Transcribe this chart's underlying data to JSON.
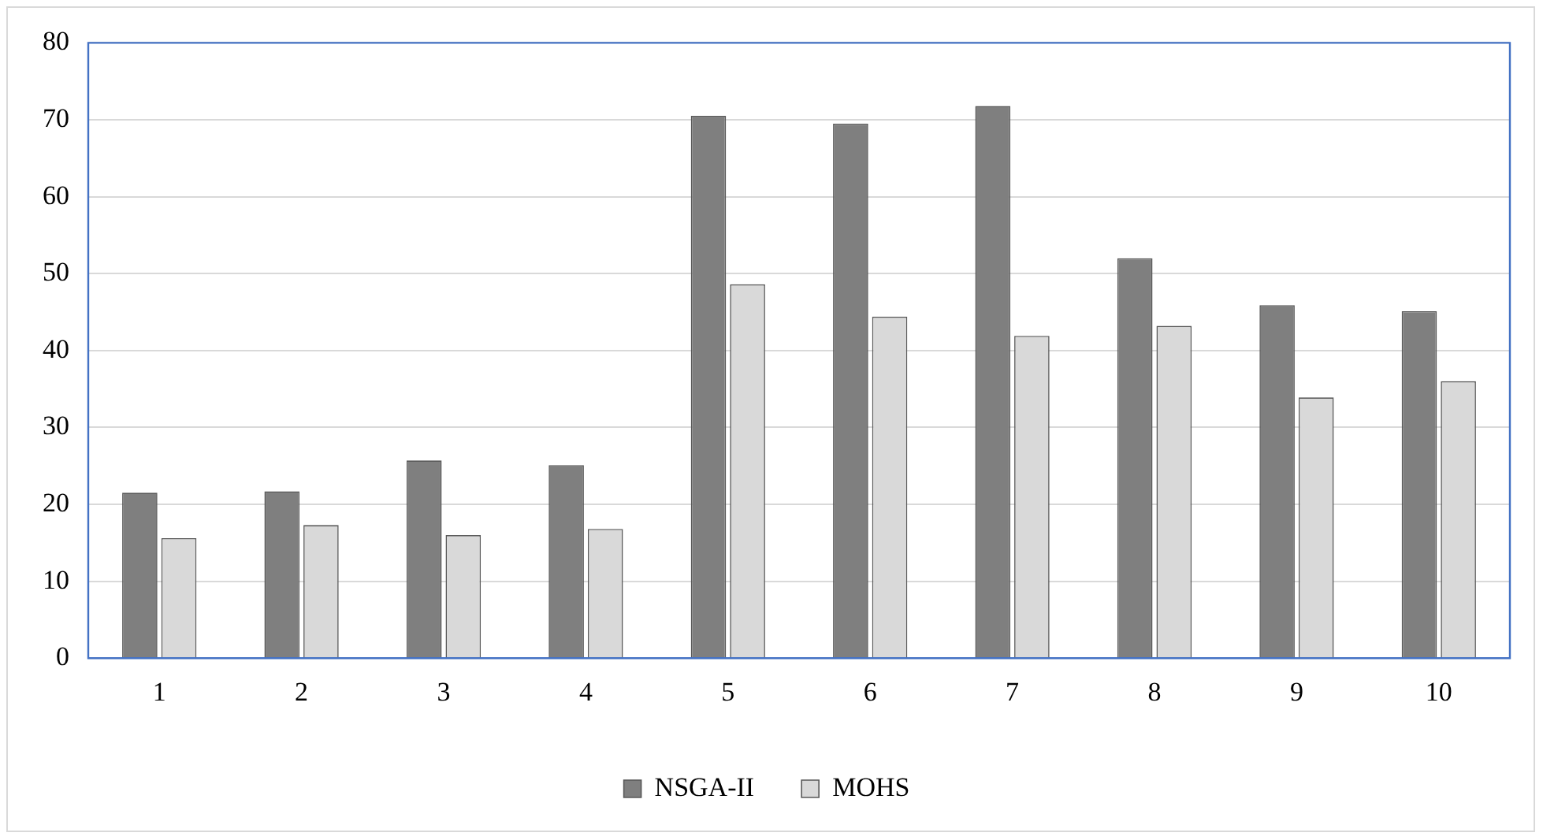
{
  "chart_data": {
    "type": "bar",
    "categories": [
      "1",
      "2",
      "3",
      "4",
      "5",
      "6",
      "7",
      "8",
      "9",
      "10"
    ],
    "series": [
      {
        "name": "NSGA-II",
        "color": "#7f7f7f",
        "values": [
          21.5,
          21.7,
          25.7,
          25.1,
          70.5,
          69.5,
          71.8,
          52.0,
          45.9,
          45.1
        ]
      },
      {
        "name": "MOHS",
        "color": "#d9d9d9",
        "values": [
          15.6,
          17.3,
          16.0,
          16.8,
          48.6,
          44.4,
          41.9,
          43.2,
          33.9,
          36.0
        ]
      }
    ],
    "ylim": [
      0,
      80
    ],
    "yticks": [
      0,
      10,
      20,
      30,
      40,
      50,
      60,
      70,
      80
    ],
    "grid": "y",
    "legend": "bottom"
  }
}
